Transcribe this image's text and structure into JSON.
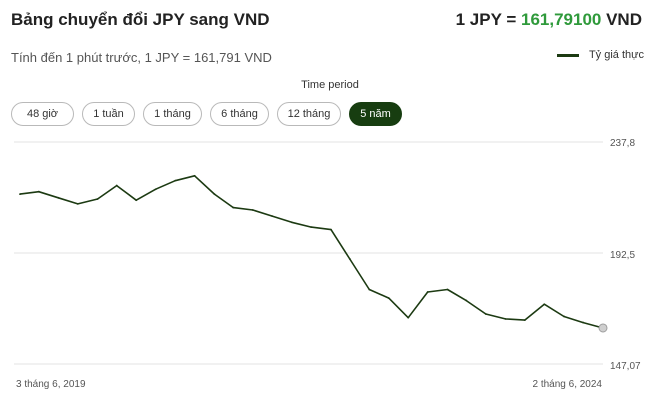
{
  "header": {
    "title": "Bảng chuyển đổi JPY sang VND",
    "rate_prefix": "1 JPY = ",
    "rate_value": "161,79100",
    "rate_suffix": " VND",
    "subtitle": "Tính đến 1 phút trước, 1 JPY = 161,791 VND"
  },
  "legend": {
    "label": "Tỷ giá thực"
  },
  "period": {
    "label": "Time period",
    "buttons": [
      "48 giờ",
      "1 tuần",
      "1 tháng",
      "6 tháng",
      "12 tháng",
      "5 năm"
    ],
    "active": "5 năm"
  },
  "colors": {
    "line": "#1c3a12",
    "active_button": "#173d10",
    "rate_accent": "#2f9a3b"
  },
  "chart_data": {
    "type": "line",
    "series": [
      {
        "name": "Tỷ giá thực",
        "x": [
          "2019-06-03",
          "2019-08-01",
          "2019-10-01",
          "2019-12-01",
          "2020-02-01",
          "2020-04-01",
          "2020-06-01",
          "2020-08-01",
          "2020-10-01",
          "2020-12-01",
          "2021-02-01",
          "2021-04-01",
          "2021-06-01",
          "2021-08-01",
          "2021-10-01",
          "2021-12-01",
          "2022-02-01",
          "2022-04-01",
          "2022-06-01",
          "2022-08-01",
          "2022-10-01",
          "2022-12-01",
          "2023-02-01",
          "2023-04-01",
          "2023-06-01",
          "2023-08-01",
          "2023-10-01",
          "2023-12-01",
          "2024-02-01",
          "2024-04-01",
          "2024-06-02"
        ],
        "y": [
          216.5,
          217.5,
          215.0,
          212.5,
          214.5,
          220.0,
          214.0,
          218.5,
          222.0,
          224.0,
          216.5,
          211.0,
          210.0,
          207.5,
          205.0,
          203.0,
          202.0,
          190.0,
          177.5,
          174.0,
          166.0,
          176.5,
          177.5,
          173.0,
          167.5,
          165.5,
          165.0,
          171.5,
          166.5,
          164.0,
          161.791
        ]
      }
    ],
    "x_tick_labels": [
      "3 tháng 6, 2019",
      "2 tháng 6, 2024"
    ],
    "y_tick_labels": [
      "237,8",
      "192,5",
      "147,07"
    ],
    "ylim": [
      147.07,
      237.8
    ],
    "grid": "horizontal"
  }
}
